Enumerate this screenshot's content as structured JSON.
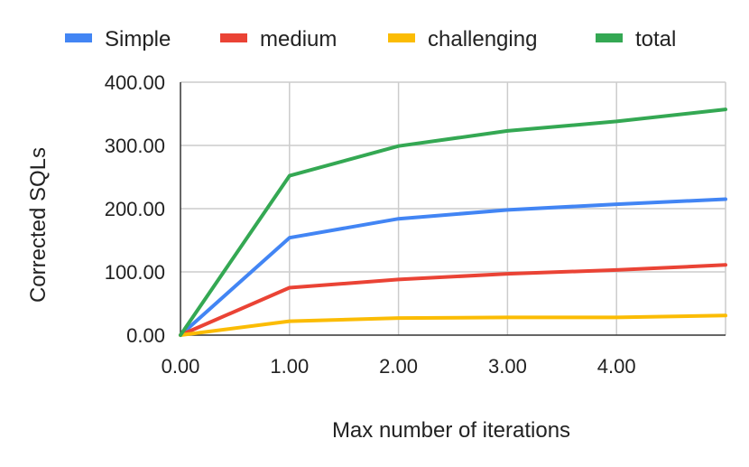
{
  "chart_data": {
    "type": "line",
    "title": "",
    "xlabel": "Max number of iterations",
    "ylabel": "Corrected SQLs",
    "x": [
      0,
      1,
      2,
      3,
      4,
      5
    ],
    "xlim": [
      0,
      5
    ],
    "ylim": [
      0,
      400
    ],
    "x_tick_labels": [
      "0.00",
      "1.00",
      "2.00",
      "3.00",
      "4.00"
    ],
    "y_tick_labels": [
      "0.00",
      "100.00",
      "200.00",
      "300.00",
      "400.00"
    ],
    "grid": true,
    "legend_position": "top",
    "series": [
      {
        "name": "Simple",
        "color": "#4285F4",
        "values": [
          0,
          154,
          184,
          198,
          207,
          215
        ]
      },
      {
        "name": "medium",
        "color": "#EA4335",
        "values": [
          0,
          75,
          88,
          97,
          103,
          111
        ]
      },
      {
        "name": "challenging",
        "color": "#FBBC04",
        "values": [
          0,
          22,
          27,
          28,
          28,
          31
        ]
      },
      {
        "name": "total",
        "color": "#34A853",
        "values": [
          0,
          252,
          299,
          323,
          338,
          357
        ]
      }
    ]
  }
}
